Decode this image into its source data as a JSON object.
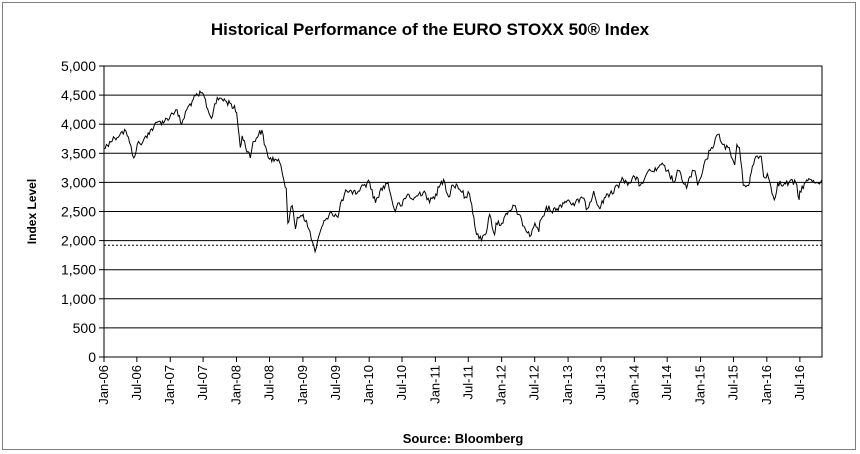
{
  "chart_data": {
    "type": "line",
    "title": "Historical Performance of the EURO STOXX 50® Index",
    "ylabel": "Index Level",
    "xlabel": "",
    "source": "Source:  Bloomberg",
    "ylim": [
      0,
      5000
    ],
    "yticks": [
      0,
      500,
      1000,
      1500,
      2000,
      2500,
      3000,
      3500,
      4000,
      4500,
      5000
    ],
    "ytick_labels": [
      "0",
      "500",
      "1,000",
      "1,500",
      "2,000",
      "2,500",
      "3,000",
      "3,500",
      "4,000",
      "4,500",
      "5,000"
    ],
    "xlim": [
      "2006-01-01",
      "2016-10-31"
    ],
    "xtick_labels": [
      "Jan-06",
      "Jul-06",
      "Jan-07",
      "Jul-07",
      "Jan-08",
      "Jul-08",
      "Jan-09",
      "Jul-09",
      "Jan-10",
      "Jul-10",
      "Jan-11",
      "Jul-11",
      "Jan-12",
      "Jul-12",
      "Jan-13",
      "Jul-13",
      "Jan-14",
      "Jul-14",
      "Jan-15",
      "Jul-15",
      "Jan-16",
      "Jul-16"
    ],
    "xtick_dates": [
      "2006-01-01",
      "2006-07-01",
      "2007-01-01",
      "2007-07-01",
      "2008-01-01",
      "2008-07-01",
      "2009-01-01",
      "2009-07-01",
      "2010-01-01",
      "2010-07-01",
      "2011-01-01",
      "2011-07-01",
      "2012-01-01",
      "2012-07-01",
      "2013-01-01",
      "2013-07-01",
      "2014-01-01",
      "2014-07-01",
      "2015-01-01",
      "2015-07-01",
      "2016-01-01",
      "2016-07-01"
    ],
    "grid": "horizontal",
    "reference_line": {
      "value": 1920,
      "style": "dashed"
    },
    "series": [
      {
        "color": "#000000",
        "points": [
          [
            "2006-01-02",
            3580
          ],
          [
            "2006-02-01",
            3700
          ],
          [
            "2006-03-01",
            3760
          ],
          [
            "2006-04-03",
            3850
          ],
          [
            "2006-05-02",
            3880
          ],
          [
            "2006-05-22",
            3680
          ],
          [
            "2006-06-14",
            3420
          ],
          [
            "2006-07-03",
            3650
          ],
          [
            "2006-08-01",
            3680
          ],
          [
            "2006-09-01",
            3850
          ],
          [
            "2006-10-02",
            3950
          ],
          [
            "2006-11-01",
            4050
          ],
          [
            "2006-12-01",
            4050
          ],
          [
            "2007-01-02",
            4150
          ],
          [
            "2007-02-01",
            4250
          ],
          [
            "2007-03-05",
            4000
          ],
          [
            "2007-04-02",
            4250
          ],
          [
            "2007-05-02",
            4400
          ],
          [
            "2007-06-01",
            4500
          ],
          [
            "2007-07-02",
            4520
          ],
          [
            "2007-08-01",
            4200
          ],
          [
            "2007-08-16",
            4100
          ],
          [
            "2007-09-03",
            4350
          ],
          [
            "2007-10-01",
            4450
          ],
          [
            "2007-11-01",
            4400
          ],
          [
            "2007-12-03",
            4350
          ],
          [
            "2008-01-02",
            4200
          ],
          [
            "2008-01-22",
            3600
          ],
          [
            "2008-02-01",
            3800
          ],
          [
            "2008-03-17",
            3420
          ],
          [
            "2008-04-01",
            3700
          ],
          [
            "2008-05-02",
            3820
          ],
          [
            "2008-05-20",
            3900
          ],
          [
            "2008-06-02",
            3650
          ],
          [
            "2008-07-01",
            3400
          ],
          [
            "2008-08-01",
            3400
          ],
          [
            "2008-09-01",
            3300
          ],
          [
            "2008-10-01",
            2900
          ],
          [
            "2008-10-10",
            2300
          ],
          [
            "2008-11-03",
            2600
          ],
          [
            "2008-11-21",
            2200
          ],
          [
            "2008-12-01",
            2400
          ],
          [
            "2009-01-02",
            2450
          ],
          [
            "2009-02-02",
            2200
          ],
          [
            "2009-03-09",
            1810
          ],
          [
            "2009-04-01",
            2100
          ],
          [
            "2009-05-04",
            2350
          ],
          [
            "2009-06-01",
            2500
          ],
          [
            "2009-07-13",
            2400
          ],
          [
            "2009-08-03",
            2700
          ],
          [
            "2009-09-01",
            2850
          ],
          [
            "2009-10-01",
            2800
          ],
          [
            "2009-11-02",
            2850
          ],
          [
            "2009-12-01",
            2950
          ],
          [
            "2010-01-04",
            3000
          ],
          [
            "2010-02-05",
            2650
          ],
          [
            "2010-03-01",
            2850
          ],
          [
            "2010-04-15",
            3000
          ],
          [
            "2010-05-06",
            2700
          ],
          [
            "2010-05-25",
            2500
          ],
          [
            "2010-06-15",
            2650
          ],
          [
            "2010-07-01",
            2600
          ],
          [
            "2010-08-02",
            2800
          ],
          [
            "2010-09-01",
            2700
          ],
          [
            "2010-10-01",
            2800
          ],
          [
            "2010-11-01",
            2850
          ],
          [
            "2010-11-30",
            2650
          ],
          [
            "2011-01-03",
            2800
          ],
          [
            "2011-02-15",
            3050
          ],
          [
            "2011-03-15",
            2750
          ],
          [
            "2011-04-01",
            2950
          ],
          [
            "2011-05-02",
            2950
          ],
          [
            "2011-06-15",
            2750
          ],
          [
            "2011-07-08",
            2800
          ],
          [
            "2011-08-01",
            2400
          ],
          [
            "2011-08-09",
            2200
          ],
          [
            "2011-09-12",
            2000
          ],
          [
            "2011-10-03",
            2100
          ],
          [
            "2011-10-27",
            2450
          ],
          [
            "2011-11-23",
            2100
          ],
          [
            "2011-12-01",
            2300
          ],
          [
            "2012-01-02",
            2300
          ],
          [
            "2012-02-01",
            2450
          ],
          [
            "2012-03-16",
            2600
          ],
          [
            "2012-04-02",
            2450
          ],
          [
            "2012-05-02",
            2250
          ],
          [
            "2012-06-04",
            2070
          ],
          [
            "2012-07-02",
            2300
          ],
          [
            "2012-07-24",
            2150
          ],
          [
            "2012-08-01",
            2350
          ],
          [
            "2012-09-17",
            2600
          ],
          [
            "2012-10-01",
            2500
          ],
          [
            "2012-11-01",
            2550
          ],
          [
            "2012-12-03",
            2650
          ],
          [
            "2013-01-02",
            2700
          ],
          [
            "2013-02-04",
            2600
          ],
          [
            "2013-03-15",
            2750
          ],
          [
            "2013-04-18",
            2550
          ],
          [
            "2013-05-22",
            2850
          ],
          [
            "2013-06-24",
            2550
          ],
          [
            "2013-07-01",
            2600
          ],
          [
            "2013-08-01",
            2800
          ],
          [
            "2013-09-02",
            2800
          ],
          [
            "2013-10-01",
            2950
          ],
          [
            "2013-11-01",
            3050
          ],
          [
            "2013-12-02",
            3000
          ],
          [
            "2014-01-02",
            3100
          ],
          [
            "2014-02-03",
            2950
          ],
          [
            "2014-03-03",
            3100
          ],
          [
            "2014-04-01",
            3200
          ],
          [
            "2014-05-02",
            3200
          ],
          [
            "2014-06-10",
            3300
          ],
          [
            "2014-07-01",
            3200
          ],
          [
            "2014-08-08",
            3000
          ],
          [
            "2014-09-01",
            3200
          ],
          [
            "2014-10-16",
            2900
          ],
          [
            "2014-11-03",
            3100
          ],
          [
            "2014-12-01",
            3200
          ],
          [
            "2014-12-16",
            2950
          ],
          [
            "2015-01-05",
            3100
          ],
          [
            "2015-02-02",
            3400
          ],
          [
            "2015-03-02",
            3600
          ],
          [
            "2015-04-13",
            3830
          ],
          [
            "2015-05-04",
            3650
          ],
          [
            "2015-06-01",
            3600
          ],
          [
            "2015-07-08",
            3300
          ],
          [
            "2015-07-20",
            3650
          ],
          [
            "2015-08-03",
            3600
          ],
          [
            "2015-08-24",
            2950
          ],
          [
            "2015-09-29",
            3000
          ],
          [
            "2015-10-01",
            3100
          ],
          [
            "2015-11-02",
            3450
          ],
          [
            "2015-12-01",
            3450
          ],
          [
            "2015-12-14",
            3100
          ],
          [
            "2016-01-04",
            3150
          ],
          [
            "2016-02-11",
            2700
          ],
          [
            "2016-03-01",
            3000
          ],
          [
            "2016-04-01",
            2950
          ],
          [
            "2016-05-02",
            3000
          ],
          [
            "2016-06-08",
            3000
          ],
          [
            "2016-06-27",
            2700
          ],
          [
            "2016-07-01",
            2850
          ],
          [
            "2016-08-01",
            3000
          ],
          [
            "2016-09-01",
            3050
          ],
          [
            "2016-10-03",
            3000
          ],
          [
            "2016-10-31",
            3050
          ]
        ]
      }
    ]
  }
}
